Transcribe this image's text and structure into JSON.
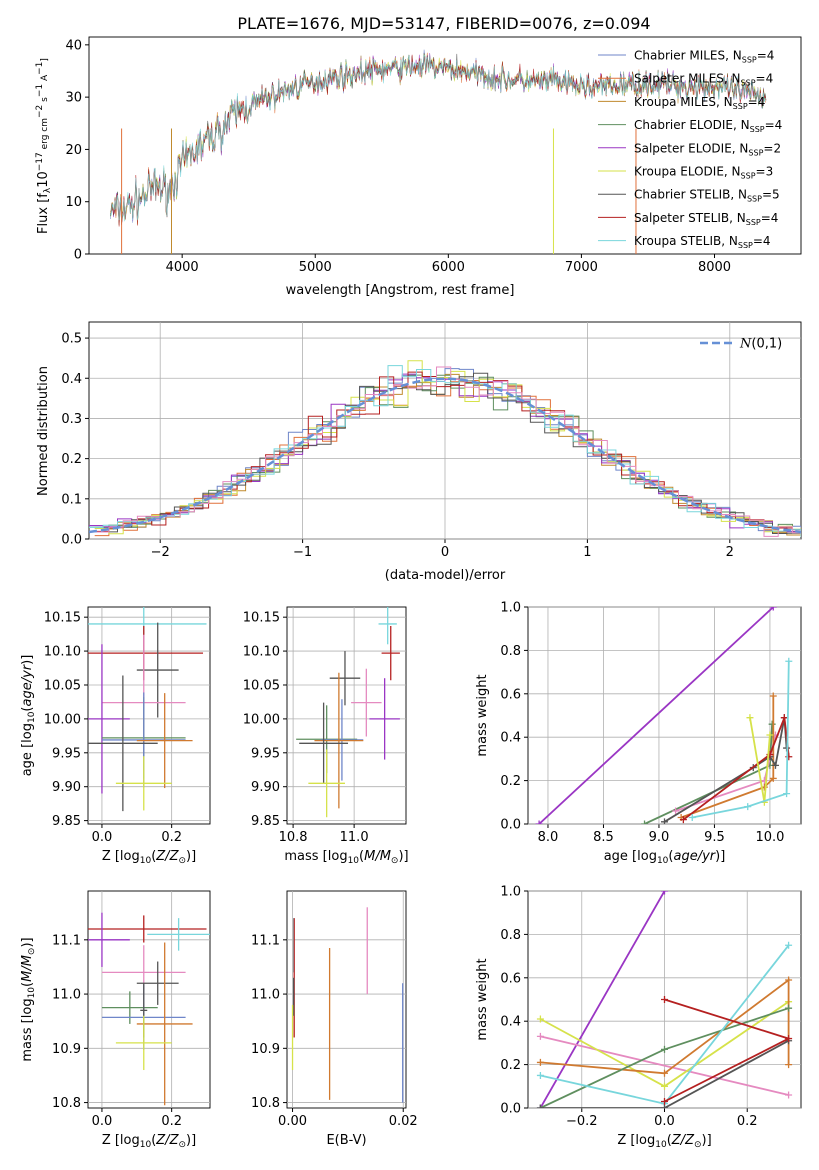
{
  "figure_title": "PLATE=1676, MJD=53147, FIBERID=0076, z=0.094",
  "colors": {
    "chabrier_miles": "#6f86c9",
    "salpeter_miles": "#e0703a",
    "kroupa_miles": "#c08a2e",
    "chabrier_elodie": "#5f8f5f",
    "salpeter_elodie": "#9a36c4",
    "kroupa_elodie": "#d6e24a",
    "chabrier_stelib": "#555555",
    "salpeter_stelib": "#b52020",
    "kroupa_stelib": "#78d6dc",
    "pink": "#e58ac0",
    "orange": "#d07a30",
    "gaussian": "#6690d6"
  },
  "chart_data": [
    {
      "id": "spectrum",
      "type": "line",
      "xlabel": "wavelength [Angstrom, rest frame]",
      "ylabel": "Flux [f_λ10^-17 erg cm^-2 s^-1 A^-1]",
      "xlim": [
        3300,
        8650
      ],
      "ylim": [
        0,
        41.5
      ],
      "xticks": [
        4000,
        5000,
        6000,
        7000,
        8000
      ],
      "yticks": [
        0,
        10,
        20,
        30,
        40
      ],
      "continuum": {
        "x": [
          3450,
          3600,
          3700,
          3800,
          3900,
          4000,
          4100,
          4200,
          4300,
          4400,
          4600,
          4800,
          5000,
          5200,
          5400,
          5600,
          5800,
          6000,
          6200,
          6400,
          6600,
          6800,
          7000,
          7200,
          7400,
          7600,
          7800,
          8000,
          8200,
          8400
        ],
        "y": [
          8,
          9,
          11,
          13,
          12,
          17,
          20,
          22,
          24,
          27,
          29.5,
          31.5,
          33,
          34,
          35,
          35.5,
          36,
          35.5,
          34.5,
          33.5,
          33,
          33,
          32,
          32,
          32.5,
          32.5,
          32,
          32,
          31,
          30
        ]
      },
      "legend": [
        {
          "name": "Chabrier MILES, N_SSP=4",
          "label": "Chabrier MILES, N",
          "sub": "SSP",
          "suffix": "=4",
          "color": "#6f86c9"
        },
        {
          "name": "Salpeter MILES, N_SSP=4",
          "label": "Salpeter MILES, N",
          "sub": "SSP",
          "suffix": "=4",
          "color": "#e0703a"
        },
        {
          "name": "Kroupa MILES, N_SSP=4",
          "label": "Kroupa MILES, N",
          "sub": "SSP",
          "suffix": "=4",
          "color": "#c08a2e"
        },
        {
          "name": "Chabrier ELODIE, N_SSP=4",
          "label": "Chabrier ELODIE, N",
          "sub": "SSP",
          "suffix": "=4",
          "color": "#5f8f5f"
        },
        {
          "name": "Salpeter ELODIE, N_SSP=2",
          "label": "Salpeter ELODIE, N",
          "sub": "SSP",
          "suffix": "=2",
          "color": "#9a36c4"
        },
        {
          "name": "Kroupa ELODIE, N_SSP=3",
          "label": "Kroupa ELODIE, N",
          "sub": "SSP",
          "suffix": "=3",
          "color": "#d6e24a"
        },
        {
          "name": "Chabrier STELIB, N_SSP=5",
          "label": "Chabrier STELIB, N",
          "sub": "SSP",
          "suffix": "=5",
          "color": "#555555"
        },
        {
          "name": "Salpeter STELIB, N_SSP=4",
          "label": "Salpeter STELIB, N",
          "sub": "SSP",
          "suffix": "=4",
          "color": "#b52020"
        },
        {
          "name": "Kroupa STELIB, N_SSP=4",
          "label": "Kroupa STELIB, N",
          "sub": "SSP",
          "suffix": "=4",
          "color": "#78d6dc"
        }
      ]
    },
    {
      "id": "residuals",
      "type": "histogram",
      "xlabel": "(data-model)/error",
      "ylabel": "Normed distribution",
      "xlim": [
        -2.5,
        2.5
      ],
      "ylim": [
        0,
        0.54
      ],
      "xticks": [
        -2,
        -1,
        0,
        1,
        2
      ],
      "yticks": [
        0.0,
        0.1,
        0.2,
        0.3,
        0.4,
        0.5
      ],
      "bin_width": 0.1,
      "legend": {
        "label": "N(0,1)"
      }
    },
    {
      "id": "age_vs_Z",
      "type": "errorbar",
      "xlabel": "Z [log10(Z/Z⊙)]",
      "ylabel": "age  [log10(age/yr)]",
      "xlim": [
        -0.04,
        0.31
      ],
      "ylim": [
        9.845,
        10.165
      ],
      "xticks": [
        0.0,
        0.2
      ],
      "yticks": [
        9.85,
        9.9,
        9.95,
        10.0,
        10.05,
        10.1,
        10.15
      ],
      "points": [
        {
          "x": 0.12,
          "xerr": 0.18,
          "y": 10.14,
          "yerr": 0.04,
          "color": "#78d6dc"
        },
        {
          "x": 0.12,
          "xerr": 0.17,
          "y": 10.097,
          "yerr": 0.04,
          "color": "#b52020"
        },
        {
          "x": 0.16,
          "xerr": 0.06,
          "y": 10.072,
          "yerr": 0.07,
          "color": "#555555"
        },
        {
          "x": 0.12,
          "xerr": 0.12,
          "y": 10.024,
          "yerr": 0.1,
          "color": "#e58ac0"
        },
        {
          "x": 0.0,
          "xerr": 0.08,
          "y": 10.0,
          "yerr": 0.11,
          "color": "#9a36c4"
        },
        {
          "x": 0.12,
          "xerr": 0.12,
          "y": 9.972,
          "yerr": 0.06,
          "color": "#5f8f5f"
        },
        {
          "x": 0.12,
          "xerr": 0.12,
          "y": 9.969,
          "yerr": 0.07,
          "color": "#6f86c9"
        },
        {
          "x": 0.18,
          "xerr": 0.08,
          "y": 9.968,
          "yerr": 0.07,
          "color": "#d07a30"
        },
        {
          "x": 0.06,
          "xerr": 0.1,
          "y": 9.964,
          "yerr": 0.1,
          "color": "#555555"
        },
        {
          "x": 0.12,
          "xerr": 0.08,
          "y": 9.905,
          "yerr": 0.04,
          "color": "#d6e24a"
        }
      ]
    },
    {
      "id": "age_vs_mass",
      "type": "errorbar",
      "xlabel": "mass [log10(M/M⊙)]",
      "ylabel": "",
      "xlim": [
        10.78,
        11.17
      ],
      "ylim": [
        9.845,
        10.165
      ],
      "xticks": [
        10.8,
        11.0
      ],
      "yticks": [
        9.85,
        9.9,
        9.95,
        10.0,
        10.05,
        10.1,
        10.15
      ],
      "points": [
        {
          "x": 11.11,
          "xerr": 0.03,
          "y": 10.14,
          "yerr": 0.03,
          "color": "#78d6dc"
        },
        {
          "x": 11.12,
          "xerr": 0.03,
          "y": 10.097,
          "yerr": 0.04,
          "color": "#b52020"
        },
        {
          "x": 11.04,
          "xerr": 0.05,
          "y": 10.024,
          "yerr": 0.05,
          "color": "#e58ac0"
        },
        {
          "x": 11.1,
          "xerr": 0.05,
          "y": 10.0,
          "yerr": 0.06,
          "color": "#9a36c4"
        },
        {
          "x": 10.97,
          "xerr": 0.05,
          "y": 10.06,
          "yerr": 0.04,
          "color": "#555555"
        },
        {
          "x": 10.91,
          "xerr": 0.1,
          "y": 9.97,
          "yerr": 0.05,
          "color": "#5f8f5f"
        },
        {
          "x": 10.96,
          "xerr": 0.07,
          "y": 9.969,
          "yerr": 0.06,
          "color": "#6f86c9"
        },
        {
          "x": 10.95,
          "xerr": 0.08,
          "y": 9.968,
          "yerr": 0.1,
          "color": "#d07a30"
        },
        {
          "x": 10.9,
          "xerr": 0.08,
          "y": 9.964,
          "yerr": 0.06,
          "color": "#555555"
        },
        {
          "x": 10.91,
          "xerr": 0.06,
          "y": 9.905,
          "yerr": 0.05,
          "color": "#d6e24a"
        }
      ]
    },
    {
      "id": "weight_vs_age",
      "type": "line",
      "xlabel": "age  [log10(age/yr)]",
      "ylabel": "mass weight",
      "xlim": [
        7.82,
        10.28
      ],
      "ylim": [
        0,
        1.0
      ],
      "xticks": [
        8.0,
        8.5,
        9.0,
        9.5,
        10.0
      ],
      "yticks": [
        0.0,
        0.2,
        0.4,
        0.6,
        0.8,
        1.0
      ],
      "series": [
        {
          "color": "#9a36c4",
          "x": [
            7.92,
            10.03
          ],
          "y": [
            0.0,
            1.0
          ]
        },
        {
          "color": "#5f8f5f",
          "x": [
            8.87,
            10.0,
            10.02
          ],
          "y": [
            0.0,
            0.27,
            0.46
          ]
        },
        {
          "color": "#e58ac0",
          "x": [
            9.15,
            9.95,
            10.05
          ],
          "y": [
            0.06,
            0.2,
            0.41
          ]
        },
        {
          "color": "#d07a30",
          "x": [
            9.2,
            9.95,
            10.03,
            10.03
          ],
          "y": [
            0.03,
            0.17,
            0.21,
            0.59
          ]
        },
        {
          "color": "#555555",
          "x": [
            9.05,
            9.85,
            10.0,
            10.05,
            10.13,
            10.15
          ],
          "y": [
            0.01,
            0.26,
            0.31,
            0.27,
            0.49,
            0.35
          ]
        },
        {
          "color": "#b52020",
          "x": [
            9.22,
            10.0,
            10.13,
            10.17
          ],
          "y": [
            0.02,
            0.32,
            0.49,
            0.31
          ]
        },
        {
          "color": "#d6e24a",
          "x": [
            9.82,
            9.95,
            10.0
          ],
          "y": [
            0.49,
            0.1,
            0.41
          ]
        },
        {
          "color": "#78d6dc",
          "x": [
            9.3,
            9.8,
            10.15,
            10.17
          ],
          "y": [
            0.03,
            0.08,
            0.14,
            0.75
          ]
        }
      ]
    },
    {
      "id": "mass_vs_Z",
      "type": "errorbar",
      "xlabel": "Z [log10(Z/Z⊙)]",
      "ylabel": "mass [log10(M/M⊙)]",
      "xlim": [
        -0.04,
        0.31
      ],
      "ylim": [
        10.79,
        11.19
      ],
      "xticks": [
        0.0,
        0.2
      ],
      "yticks": [
        10.8,
        10.9,
        11.0,
        11.1
      ],
      "points": [
        {
          "x": 0.12,
          "xerr": 0.18,
          "y": 11.12,
          "yerr": 0.025,
          "color": "#b52020"
        },
        {
          "x": 0.22,
          "xerr": 0.09,
          "y": 11.11,
          "yerr": 0.03,
          "color": "#78d6dc"
        },
        {
          "x": 0.0,
          "xerr": 0.08,
          "y": 11.1,
          "yerr": 0.05,
          "color": "#9a36c4"
        },
        {
          "x": 0.12,
          "xerr": 0.12,
          "y": 11.04,
          "yerr": 0.05,
          "color": "#e58ac0"
        },
        {
          "x": 0.16,
          "xerr": 0.06,
          "y": 11.02,
          "yerr": 0.04,
          "color": "#555555"
        },
        {
          "x": 0.08,
          "xerr": 0.08,
          "y": 10.975,
          "yerr": 0.03,
          "color": "#5f8f5f"
        },
        {
          "x": 0.12,
          "xerr": 0.12,
          "y": 10.957,
          "yerr": 0.06,
          "color": "#6f86c9"
        },
        {
          "x": 0.18,
          "xerr": 0.08,
          "y": 10.945,
          "yerr": 0.15,
          "color": "#d07a30"
        },
        {
          "x": 0.12,
          "xerr": 0.01,
          "y": 10.97,
          "yerr": 0.05,
          "color": "#555555"
        },
        {
          "x": 0.12,
          "xerr": 0.08,
          "y": 10.91,
          "yerr": 0.05,
          "color": "#d6e24a"
        }
      ]
    },
    {
      "id": "mass_vs_ebv",
      "type": "errorbar",
      "xlabel": "E(B-V)",
      "ylabel": "",
      "xlim": [
        -0.001,
        0.0205
      ],
      "ylim": [
        10.79,
        11.19
      ],
      "xticks": [
        0.0,
        0.02
      ],
      "yticks": [
        10.8,
        10.9,
        11.0,
        11.1
      ],
      "points": [
        {
          "x": 0.0002,
          "y": 11.09,
          "yerr": 0.05,
          "color": "#78d6dc"
        },
        {
          "x": 0.0003,
          "y": 11.03,
          "yerr": 0.11,
          "color": "#b52020"
        },
        {
          "x": 0.0002,
          "y": 10.995,
          "yerr": 0.035,
          "color": "#555555"
        },
        {
          "x": 0.0,
          "y": 10.92,
          "yerr": 0.06,
          "color": "#d6e24a"
        },
        {
          "x": 0.0067,
          "y": 10.945,
          "yerr": 0.14,
          "color": "#d07a30"
        },
        {
          "x": 0.0135,
          "y": 11.08,
          "yerr": 0.08,
          "color": "#e58ac0"
        },
        {
          "x": 0.0199,
          "y": 10.91,
          "yerr": 0.11,
          "color": "#6f86c9"
        }
      ]
    },
    {
      "id": "weight_vs_Z",
      "type": "line",
      "xlabel": "Z [log10(Z/Z⊙)]",
      "ylabel": "mass weight",
      "xlim": [
        -0.33,
        0.33
      ],
      "ylim": [
        0,
        1.0
      ],
      "xticks": [
        -0.2,
        0.0,
        0.2
      ],
      "yticks": [
        0.0,
        0.2,
        0.4,
        0.6,
        0.8,
        1.0
      ],
      "series": [
        {
          "color": "#9a36c4",
          "x": [
            -0.3,
            0.0
          ],
          "y": [
            0.0,
            1.0
          ]
        },
        {
          "color": "#e58ac0",
          "x": [
            -0.3,
            0.3
          ],
          "y": [
            0.33,
            0.06
          ]
        },
        {
          "color": "#d6e24a",
          "x": [
            -0.3,
            0.0,
            0.3
          ],
          "y": [
            0.41,
            0.1,
            0.49
          ]
        },
        {
          "color": "#d07a30",
          "x": [
            -0.3,
            0.0,
            0.3,
            0.3
          ],
          "y": [
            0.21,
            0.16,
            0.59,
            0.2
          ]
        },
        {
          "color": "#5f8f5f",
          "x": [
            -0.3,
            0.0,
            0.3
          ],
          "y": [
            0.0,
            0.27,
            0.46
          ]
        },
        {
          "color": "#78d6dc",
          "x": [
            -0.3,
            0.0,
            0.3
          ],
          "y": [
            0.15,
            0.02,
            0.75
          ]
        },
        {
          "color": "#555555",
          "x": [
            -0.3,
            0.0,
            0.3
          ],
          "y": [
            0.0,
            0.0,
            0.31
          ]
        },
        {
          "color": "#b52020",
          "x": [
            0.0,
            0.3,
            0.0
          ],
          "y": [
            0.03,
            0.32,
            0.5
          ]
        }
      ]
    }
  ]
}
